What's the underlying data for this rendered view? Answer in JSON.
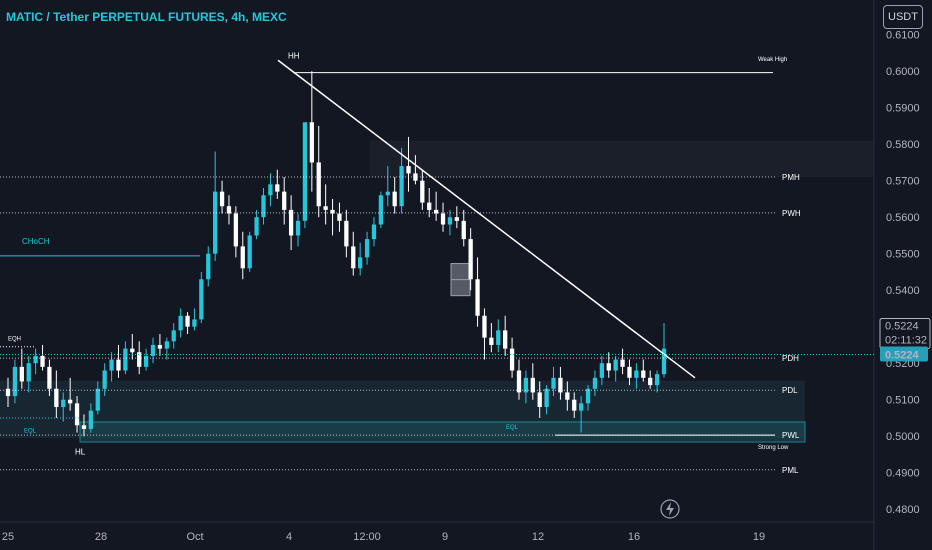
{
  "header": {
    "title": "MATIC / Tether PERPETUAL FUTURES, 4h, MEXC",
    "currency_button": "USDT"
  },
  "price_tag": {
    "price": "0.5224",
    "countdown": "02:11:32",
    "last_price": "0.5224"
  },
  "chart_data": {
    "type": "candlestick",
    "y_ticks": [
      "0.6100",
      "0.6000",
      "0.5900",
      "0.5800",
      "0.5700",
      "0.5600",
      "0.5500",
      "0.5400",
      "0.5300",
      "0.5200",
      "0.5100",
      "0.5000",
      "0.4900",
      "0.4800"
    ],
    "y_range": [
      0.4765,
      0.6195
    ],
    "x_ticks": [
      "25",
      "28",
      "Oct",
      "4",
      "12:00",
      "9",
      "12",
      "16",
      "19"
    ],
    "levels": [
      {
        "label": "PMH",
        "price": 0.571
      },
      {
        "label": "PWH",
        "price": 0.5612
      },
      {
        "label": "PDH",
        "price": 0.5214
      },
      {
        "label": "PDL",
        "price": 0.5126
      },
      {
        "label": "PWL",
        "price": 0.5003
      },
      {
        "label": "PML",
        "price": 0.4908
      }
    ],
    "annotations": {
      "hh": "HH",
      "hl": "HL",
      "weak_high": "Weak High",
      "strong_low": "Strong Low",
      "choch": "CHoCH",
      "eqh": "EQH",
      "eql_left": "EQL",
      "eql_right": "EQL",
      "weak_high_price": 0.5996,
      "choch_price": 0.5494,
      "bullish_ob_range": [
        0.4984,
        0.5039
      ],
      "zone_range": [
        0.4995,
        0.5152
      ],
      "supply_zone_range": [
        0.571,
        0.581
      ]
    },
    "candle_colors": {
      "up": "#26c6da",
      "down": "#ffffff"
    },
    "candles": [
      [
        0.513,
        0.516,
        0.508,
        0.511
      ],
      [
        0.511,
        0.521,
        0.509,
        0.519
      ],
      [
        0.519,
        0.524,
        0.513,
        0.515
      ],
      [
        0.515,
        0.522,
        0.512,
        0.52
      ],
      [
        0.52,
        0.524,
        0.517,
        0.522
      ],
      [
        0.522,
        0.525,
        0.518,
        0.519
      ],
      [
        0.519,
        0.521,
        0.511,
        0.513
      ],
      [
        0.513,
        0.518,
        0.505,
        0.508
      ],
      [
        0.508,
        0.512,
        0.504,
        0.51
      ],
      [
        0.51,
        0.516,
        0.507,
        0.509
      ],
      [
        0.509,
        0.511,
        0.501,
        0.503
      ],
      [
        0.503,
        0.506,
        0.5,
        0.502
      ],
      [
        0.502,
        0.509,
        0.501,
        0.507
      ],
      [
        0.507,
        0.515,
        0.506,
        0.513
      ],
      [
        0.513,
        0.52,
        0.511,
        0.518
      ],
      [
        0.518,
        0.523,
        0.515,
        0.521
      ],
      [
        0.521,
        0.525,
        0.516,
        0.518
      ],
      [
        0.518,
        0.526,
        0.517,
        0.524
      ],
      [
        0.524,
        0.528,
        0.521,
        0.523
      ],
      [
        0.523,
        0.526,
        0.517,
        0.519
      ],
      [
        0.519,
        0.524,
        0.518,
        0.522
      ],
      [
        0.522,
        0.527,
        0.52,
        0.525
      ],
      [
        0.525,
        0.528,
        0.522,
        0.524
      ],
      [
        0.524,
        0.527,
        0.521,
        0.526
      ],
      [
        0.526,
        0.531,
        0.524,
        0.529
      ],
      [
        0.529,
        0.535,
        0.527,
        0.533
      ],
      [
        0.533,
        0.534,
        0.528,
        0.53
      ],
      [
        0.53,
        0.535,
        0.529,
        0.532
      ],
      [
        0.532,
        0.545,
        0.531,
        0.543
      ],
      [
        0.543,
        0.552,
        0.541,
        0.55
      ],
      [
        0.55,
        0.578,
        0.548,
        0.567
      ],
      [
        0.567,
        0.57,
        0.561,
        0.563
      ],
      [
        0.563,
        0.566,
        0.558,
        0.561
      ],
      [
        0.561,
        0.563,
        0.549,
        0.552
      ],
      [
        0.552,
        0.556,
        0.543,
        0.546
      ],
      [
        0.546,
        0.556,
        0.545,
        0.555
      ],
      [
        0.555,
        0.562,
        0.554,
        0.56
      ],
      [
        0.56,
        0.568,
        0.558,
        0.566
      ],
      [
        0.566,
        0.572,
        0.563,
        0.569
      ],
      [
        0.569,
        0.573,
        0.565,
        0.567
      ],
      [
        0.567,
        0.571,
        0.558,
        0.562
      ],
      [
        0.562,
        0.566,
        0.551,
        0.555
      ],
      [
        0.555,
        0.561,
        0.552,
        0.559
      ],
      [
        0.559,
        0.586,
        0.557,
        0.586
      ],
      [
        0.586,
        0.6,
        0.567,
        0.575
      ],
      [
        0.575,
        0.585,
        0.56,
        0.563
      ],
      [
        0.563,
        0.569,
        0.558,
        0.562
      ],
      [
        0.562,
        0.565,
        0.555,
        0.561
      ],
      [
        0.561,
        0.564,
        0.556,
        0.559
      ],
      [
        0.559,
        0.562,
        0.549,
        0.552
      ],
      [
        0.552,
        0.556,
        0.544,
        0.546
      ],
      [
        0.546,
        0.553,
        0.544,
        0.549
      ],
      [
        0.549,
        0.556,
        0.547,
        0.554
      ],
      [
        0.554,
        0.56,
        0.552,
        0.558
      ],
      [
        0.558,
        0.567,
        0.557,
        0.566
      ],
      [
        0.566,
        0.574,
        0.563,
        0.567
      ],
      [
        0.567,
        0.571,
        0.561,
        0.563
      ],
      [
        0.563,
        0.579,
        0.561,
        0.574
      ],
      [
        0.574,
        0.582,
        0.567,
        0.572
      ],
      [
        0.572,
        0.577,
        0.569,
        0.57
      ],
      [
        0.57,
        0.573,
        0.562,
        0.564
      ],
      [
        0.564,
        0.568,
        0.56,
        0.562
      ],
      [
        0.562,
        0.567,
        0.559,
        0.561
      ],
      [
        0.561,
        0.564,
        0.556,
        0.558
      ],
      [
        0.558,
        0.562,
        0.555,
        0.56
      ],
      [
        0.56,
        0.563,
        0.557,
        0.559
      ],
      [
        0.559,
        0.562,
        0.552,
        0.554
      ],
      [
        0.554,
        0.557,
        0.54,
        0.543
      ],
      [
        0.543,
        0.549,
        0.53,
        0.533
      ],
      [
        0.533,
        0.535,
        0.521,
        0.527
      ],
      [
        0.527,
        0.531,
        0.523,
        0.525
      ],
      [
        0.525,
        0.532,
        0.523,
        0.529
      ],
      [
        0.529,
        0.533,
        0.522,
        0.524
      ],
      [
        0.524,
        0.527,
        0.516,
        0.518
      ],
      [
        0.518,
        0.521,
        0.51,
        0.512
      ],
      [
        0.512,
        0.518,
        0.509,
        0.516
      ],
      [
        0.516,
        0.52,
        0.51,
        0.512
      ],
      [
        0.512,
        0.515,
        0.505,
        0.508
      ],
      [
        0.508,
        0.514,
        0.506,
        0.513
      ],
      [
        0.513,
        0.519,
        0.511,
        0.516
      ],
      [
        0.516,
        0.519,
        0.51,
        0.512
      ],
      [
        0.512,
        0.515,
        0.507,
        0.51
      ],
      [
        0.51,
        0.512,
        0.505,
        0.507
      ],
      [
        0.507,
        0.511,
        0.501,
        0.509
      ],
      [
        0.509,
        0.514,
        0.507,
        0.513
      ],
      [
        0.513,
        0.518,
        0.511,
        0.516
      ],
      [
        0.516,
        0.522,
        0.514,
        0.52
      ],
      [
        0.52,
        0.523,
        0.516,
        0.518
      ],
      [
        0.518,
        0.522,
        0.515,
        0.521
      ],
      [
        0.521,
        0.524,
        0.517,
        0.519
      ],
      [
        0.519,
        0.521,
        0.514,
        0.516
      ],
      [
        0.516,
        0.52,
        0.513,
        0.518
      ],
      [
        0.518,
        0.521,
        0.515,
        0.516
      ],
      [
        0.516,
        0.518,
        0.513,
        0.514
      ],
      [
        0.514,
        0.518,
        0.512,
        0.517
      ],
      [
        0.517,
        0.531,
        0.516,
        0.524
      ]
    ]
  }
}
